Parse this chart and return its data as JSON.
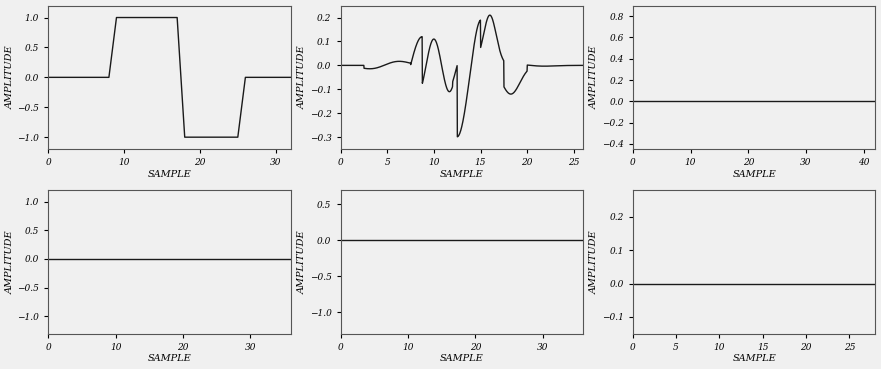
{
  "background_color": "#f0f0f0",
  "line_color": "#1a1a1a",
  "ylabel": "AMPLITUDE",
  "xlabel": "SAMPLE",
  "ylabel_fontsize": 7,
  "xlabel_fontsize": 7,
  "tick_fontsize": 6.5,
  "linewidth": 1.0
}
